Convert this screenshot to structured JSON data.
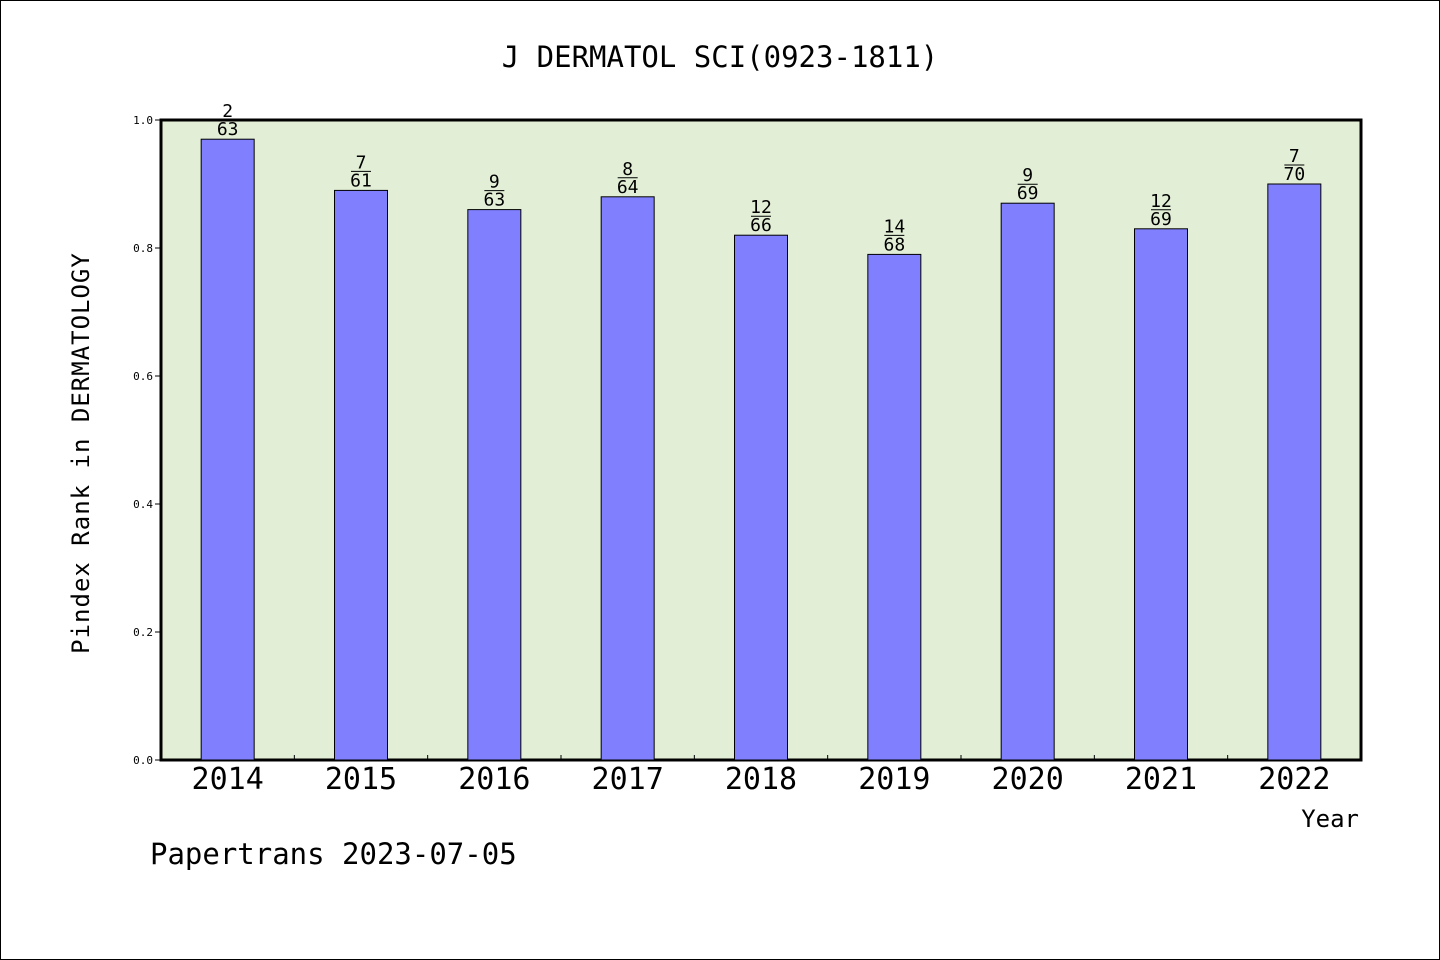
{
  "chart_data": {
    "type": "bar",
    "title": "J DERMATOL SCI(0923-1811)",
    "xlabel": "Year",
    "ylabel": "Pindex Rank in DERMATOLOGY",
    "categories": [
      "2014",
      "2015",
      "2016",
      "2017",
      "2018",
      "2019",
      "2020",
      "2021",
      "2022"
    ],
    "values": [
      0.97,
      0.89,
      0.86,
      0.88,
      0.82,
      0.79,
      0.87,
      0.83,
      0.9
    ],
    "rank": [
      "2",
      "7",
      "9",
      "8",
      "12",
      "14",
      "9",
      "12",
      "7"
    ],
    "total": [
      "63",
      "61",
      "63",
      "64",
      "66",
      "68",
      "69",
      "69",
      "70"
    ],
    "ylim": [
      0,
      1.0
    ],
    "yticks": [
      "0.0",
      "0.2",
      "0.4",
      "0.6",
      "0.8",
      "1.0"
    ],
    "grid": false,
    "colors": {
      "bar": "#8080ff",
      "plot_background": "#e2efd6",
      "axis": "#000000"
    }
  },
  "footer": {
    "credit": "Papertrans 2023-07-05"
  }
}
